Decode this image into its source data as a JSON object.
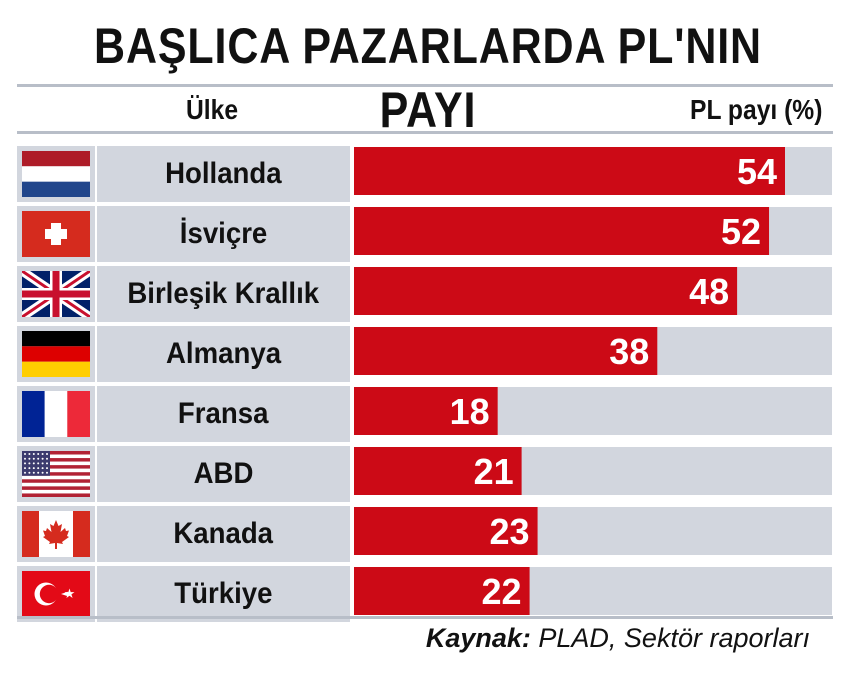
{
  "title": "BAŞLICA PAZARLARDA PL'NIN PAYI",
  "header": {
    "country_label": "Ülke",
    "value_label": "PL payı (%)"
  },
  "source": {
    "label": "Kaynak:",
    "text": "PLAD, Sektör raporları"
  },
  "colors": {
    "bar": "#cc0a16",
    "track": "#d2d6de",
    "rule": "#b8bec8",
    "label": "#ffffff"
  },
  "rows": [
    {
      "country": "Hollanda",
      "flag": "netherlands-flag-icon"
    },
    {
      "country": "İsviçre",
      "flag": "switzerland-flag-icon"
    },
    {
      "country": "Birleşik Krallık",
      "flag": "united-kingdom-flag-icon"
    },
    {
      "country": "Almanya",
      "flag": "germany-flag-icon"
    },
    {
      "country": "Fransa",
      "flag": "france-flag-icon"
    },
    {
      "country": "ABD",
      "flag": "usa-flag-icon"
    },
    {
      "country": "Kanada",
      "flag": "canada-flag-icon"
    },
    {
      "country": "Türkiye",
      "flag": "turkey-flag-icon"
    }
  ],
  "chart_data": {
    "type": "bar",
    "orientation": "horizontal",
    "title": "BAŞLICA PAZARLARDA PL'NIN PAYI",
    "xlabel": "PL payı (%)",
    "ylabel": "Ülke",
    "categories": [
      "Hollanda",
      "İsviçre",
      "Birleşik Krallık",
      "Almanya",
      "Fransa",
      "ABD",
      "Kanada",
      "Türkiye"
    ],
    "values": [
      54,
      52,
      48,
      38,
      18,
      21,
      23,
      22
    ],
    "xlim": [
      0,
      60
    ],
    "grid": false,
    "legend": "none"
  }
}
